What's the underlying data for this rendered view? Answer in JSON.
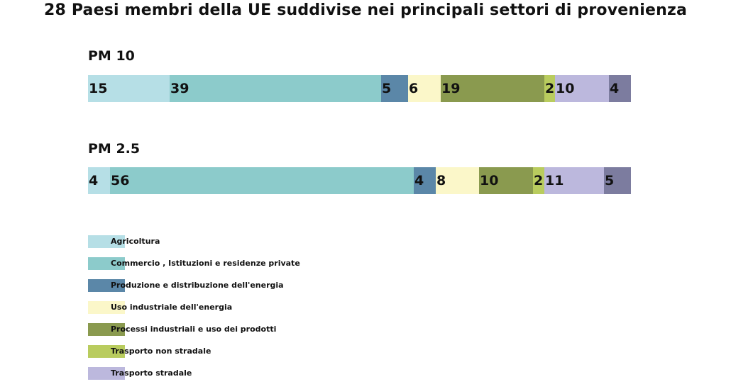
{
  "title": "28 Paesi membri della UE suddivise nei principali settori di provenienza",
  "colors": {
    "agricoltura": "#b6dfe6",
    "commercio": "#8ccbcb",
    "produzione_energia": "#5b87a8",
    "uso_industriale_energia": "#fbf7c9",
    "processi_industriali": "#8a9a4f",
    "trasporto_non_stradale": "#b9cc5e",
    "trasporto_stradale": "#bcb8dd",
    "altro": "#7c7c9f"
  },
  "chart_data": {
    "type": "bar",
    "orientation": "horizontal-stacked",
    "title": "28 Paesi membri della UE suddivise nei principali settori di provenienza",
    "xlabel": "",
    "ylabel": "",
    "categories": [
      "PM 10",
      "PM 2.5"
    ],
    "series": [
      {
        "name": "Agricoltura",
        "values": [
          15,
          4
        ]
      },
      {
        "name": "Commercio , Istituzioni e residenze private",
        "values": [
          39,
          56
        ]
      },
      {
        "name": "Produzione e distribuzione dell'energia",
        "values": [
          5,
          4
        ]
      },
      {
        "name": "Uso industriale dell'energia",
        "values": [
          6,
          8
        ]
      },
      {
        "name": "Processi industriali e uso dei prodotti",
        "values": [
          19,
          10
        ]
      },
      {
        "name": "Trasporto non stradale",
        "values": [
          2,
          2
        ]
      },
      {
        "name": "Trasporto stradale",
        "values": [
          10,
          11
        ]
      },
      {
        "name": "",
        "values": [
          4,
          5
        ]
      }
    ],
    "grid": false,
    "legend_position": "bottom-left"
  },
  "legend": [
    {
      "label": "Agricoltura",
      "color_key": "agricoltura"
    },
    {
      "label": "Commercio , Istituzioni e residenze private",
      "color_key": "commercio"
    },
    {
      "label": "Produzione e distribuzione dell'energia",
      "color_key": "produzione_energia"
    },
    {
      "label": "Uso industriale dell'energia",
      "color_key": "uso_industriale_energia"
    },
    {
      "label": "Processi industriali e uso dei prodotti",
      "color_key": "processi_industriali"
    },
    {
      "label": "Trasporto non stradale",
      "color_key": "trasporto_non_stradale"
    },
    {
      "label": "Trasporto stradale",
      "color_key": "trasporto_stradale"
    }
  ]
}
